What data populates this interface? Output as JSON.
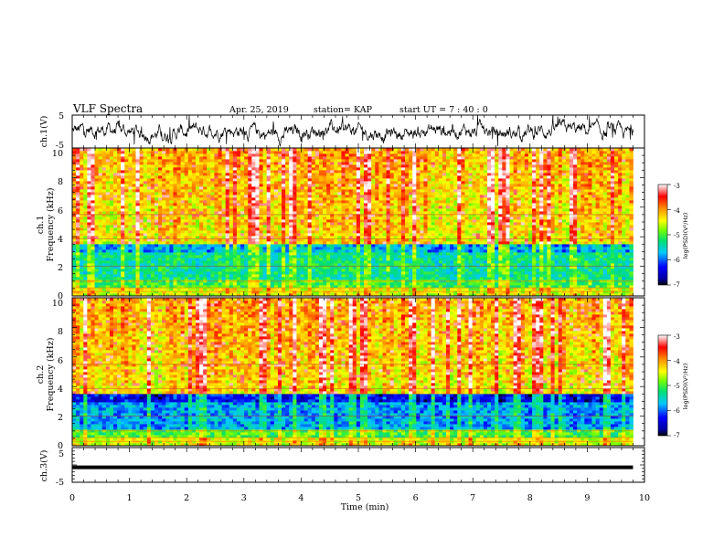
{
  "header": {
    "title": "VLF Spectra",
    "date": "Apr. 25, 2019",
    "station": "station= KAP",
    "start": "start  UT  =   7 : 40 : 0"
  },
  "chart_data": [
    {
      "type": "line",
      "panel": "ch1-waveform",
      "ylabel": "ch.1(V)",
      "ylim": [
        -5,
        5
      ],
      "yticks": [
        "5",
        "-5"
      ],
      "xlim": [
        0,
        10
      ]
    },
    {
      "type": "heatmap",
      "panel": "ch1-spectrogram",
      "ylabel_line1": "ch.1",
      "ylabel_line2": "Frequency  (kHz)",
      "ylim": [
        0,
        10
      ],
      "yticks": [
        "0",
        "2",
        "4",
        "6",
        "8",
        "10"
      ],
      "xlim": [
        0,
        9.8
      ],
      "colorbar": {
        "label": "log(PSD)(V²/Hz)",
        "range": [
          -7,
          -3
        ],
        "ticks": [
          "-3",
          "-4",
          "-5",
          "-6",
          "-7"
        ]
      }
    },
    {
      "type": "heatmap",
      "panel": "ch2-spectrogram",
      "ylabel_line1": "ch.2",
      "ylabel_line2": "Frequency  (kHz)",
      "ylim": [
        0,
        10
      ],
      "yticks": [
        "0",
        "2",
        "4",
        "6",
        "8",
        "10"
      ],
      "xlim": [
        0,
        9.8
      ],
      "colorbar": {
        "label": "log(PSD)(V²/Hz)",
        "range": [
          -7,
          -3
        ],
        "ticks": [
          "-3",
          "-4",
          "-5",
          "-6",
          "-7"
        ]
      }
    },
    {
      "type": "line",
      "panel": "ch3-waveform",
      "ylabel": "ch.3(V)",
      "ylim": [
        -5,
        5
      ],
      "yticks": [
        "5",
        "-5"
      ],
      "level": -0.7,
      "xlim": [
        0,
        9.8
      ]
    }
  ],
  "xaxis": {
    "label": "Time  (min)",
    "range": [
      0,
      10
    ],
    "ticks": [
      "0",
      "1",
      "2",
      "3",
      "4",
      "5",
      "6",
      "7",
      "8",
      "9",
      "10"
    ]
  }
}
